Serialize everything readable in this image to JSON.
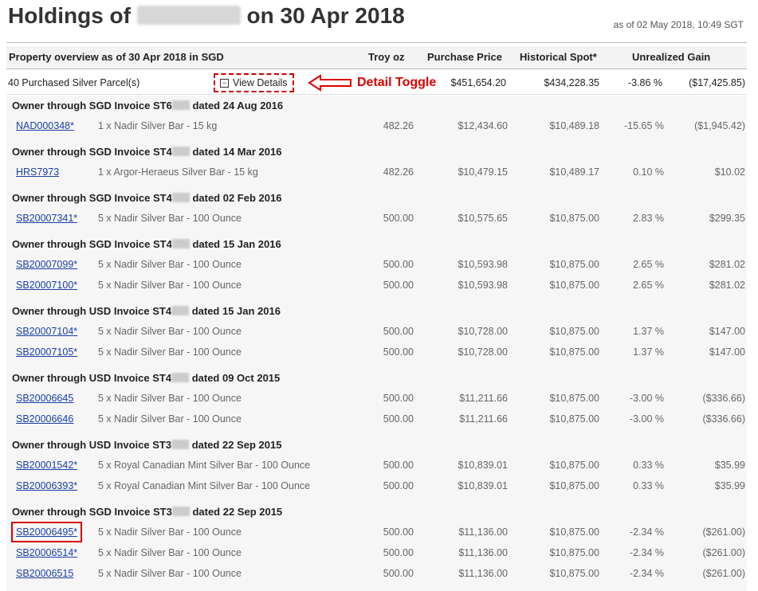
{
  "page": {
    "title_prefix": "Holdings of",
    "title_suffix": "on 30 Apr 2018",
    "as_of": "as of 02 May 2018, 10:49 SGT"
  },
  "table_header": {
    "property": "Property overview as of 30 Apr 2018 in SGD",
    "troy_oz": "Troy oz",
    "purchase_price": "Purchase Price",
    "historical_spot": "Historical Spot*",
    "unrealized_gain": "Unrealized Gain"
  },
  "summary": {
    "label": "40 Purchased Silver Parcel(s)",
    "toggle_label": "View Details",
    "purchase_price": "$451,654.20",
    "historical_spot": "$434,228.35",
    "gain_pct": "-3.86 %",
    "gain": "($17,425.85)"
  },
  "annotation": {
    "label": "Detail Toggle",
    "color": "#dd0000"
  },
  "groups": [
    {
      "prefix": "Owner through SGD Invoice ST6",
      "suffix": "dated 24 Aug 2016",
      "rows": [
        {
          "id": "NAD000348*",
          "desc": "1 x Nadir Silver Bar - 15 kg",
          "oz": "482.26",
          "price": "$12,434.60",
          "spot": "$10,489.18",
          "pct": "-15.65 %",
          "gain": "($1,945.42)"
        }
      ]
    },
    {
      "prefix": "Owner through SGD Invoice ST4",
      "suffix": "dated 14 Mar 2016",
      "rows": [
        {
          "id": "HRS7973",
          "desc": "1 x Argor-Heraeus Silver Bar - 15 kg",
          "oz": "482.26",
          "price": "$10,479.15",
          "spot": "$10,489.17",
          "pct": "0.10 %",
          "gain": "$10.02"
        }
      ]
    },
    {
      "prefix": "Owner through SGD Invoice ST4",
      "suffix": "dated 02 Feb 2016",
      "rows": [
        {
          "id": "SB20007341*",
          "desc": "5 x Nadir Silver Bar - 100 Ounce",
          "oz": "500.00",
          "price": "$10,575.65",
          "spot": "$10,875.00",
          "pct": "2.83 %",
          "gain": "$299.35"
        }
      ]
    },
    {
      "prefix": "Owner through SGD Invoice ST4",
      "suffix": "dated 15 Jan 2016",
      "rows": [
        {
          "id": "SB20007099*",
          "desc": "5 x Nadir Silver Bar - 100 Ounce",
          "oz": "500.00",
          "price": "$10,593.98",
          "spot": "$10,875.00",
          "pct": "2.65 %",
          "gain": "$281.02"
        },
        {
          "id": "SB20007100*",
          "desc": "5 x Nadir Silver Bar - 100 Ounce",
          "oz": "500.00",
          "price": "$10,593.98",
          "spot": "$10,875.00",
          "pct": "2.65 %",
          "gain": "$281.02"
        }
      ]
    },
    {
      "prefix": "Owner through USD Invoice ST4",
      "suffix": "dated 15 Jan 2016",
      "rows": [
        {
          "id": "SB20007104*",
          "desc": "5 x Nadir Silver Bar - 100 Ounce",
          "oz": "500.00",
          "price": "$10,728.00",
          "spot": "$10,875.00",
          "pct": "1.37 %",
          "gain": "$147.00"
        },
        {
          "id": "SB20007105*",
          "desc": "5 x Nadir Silver Bar - 100 Ounce",
          "oz": "500.00",
          "price": "$10,728.00",
          "spot": "$10,875.00",
          "pct": "1.37 %",
          "gain": "$147.00"
        }
      ]
    },
    {
      "prefix": "Owner through USD Invoice ST4",
      "suffix": "dated 09 Oct 2015",
      "rows": [
        {
          "id": "SB20006645",
          "desc": "5 x Nadir Silver Bar - 100 Ounce",
          "oz": "500.00",
          "price": "$11,211.66",
          "spot": "$10,875.00",
          "pct": "-3.00 %",
          "gain": "($336.66)"
        },
        {
          "id": "SB20006646",
          "desc": "5 x Nadir Silver Bar - 100 Ounce",
          "oz": "500.00",
          "price": "$11,211.66",
          "spot": "$10,875.00",
          "pct": "-3.00 %",
          "gain": "($336.66)"
        }
      ]
    },
    {
      "prefix": "Owner through USD Invoice ST3",
      "suffix": "dated 22 Sep 2015",
      "rows": [
        {
          "id": "SB20001542*",
          "desc": "5 x Royal Canadian Mint Silver Bar - 100 Ounce",
          "oz": "500.00",
          "price": "$10,839.01",
          "spot": "$10,875.00",
          "pct": "0.33 %",
          "gain": "$35.99"
        },
        {
          "id": "SB20006393*",
          "desc": "5 x Royal Canadian Mint Silver Bar - 100 Ounce",
          "oz": "500.00",
          "price": "$10,839.01",
          "spot": "$10,875.00",
          "pct": "0.33 %",
          "gain": "$35.99"
        }
      ]
    },
    {
      "prefix": "Owner through SGD Invoice ST3",
      "suffix": "dated 22 Sep 2015",
      "rows": [
        {
          "id": "SB20006495*",
          "desc": "5 x Nadir Silver Bar - 100 Ounce",
          "oz": "500.00",
          "price": "$11,136.00",
          "spot": "$10,875.00",
          "pct": "-2.34 %",
          "gain": "($261.00)",
          "highlight": true
        },
        {
          "id": "SB20006514*",
          "desc": "5 x Nadir Silver Bar - 100 Ounce",
          "oz": "500.00",
          "price": "$11,136.00",
          "spot": "$10,875.00",
          "pct": "-2.34 %",
          "gain": "($261.00)"
        },
        {
          "id": "SB20006515",
          "desc": "5 x Nadir Silver Bar - 100 Ounce",
          "oz": "500.00",
          "price": "$11,136.00",
          "spot": "$10,875.00",
          "pct": "-2.34 %",
          "gain": "($261.00)"
        }
      ]
    }
  ]
}
